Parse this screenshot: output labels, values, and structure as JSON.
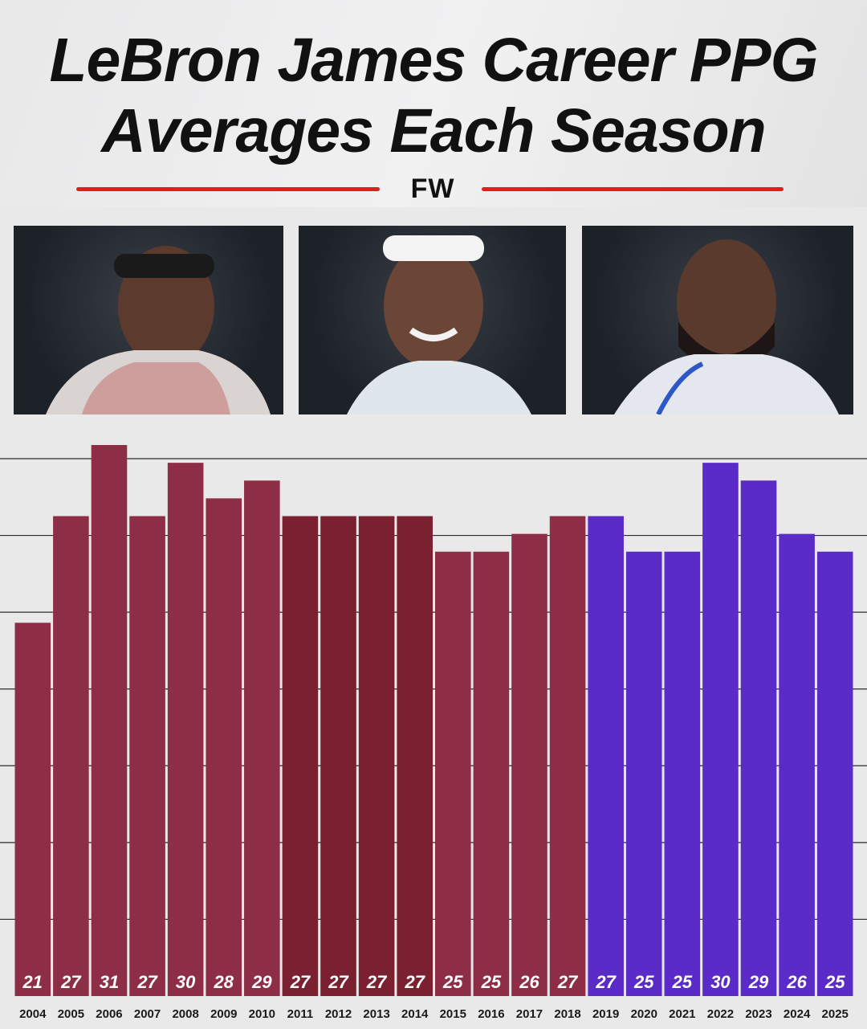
{
  "header": {
    "title_line1": "LeBron James Career PPG",
    "title_line2": "Averages Each Season",
    "brand": "FW",
    "accent_color": "#e21c21"
  },
  "photos": [
    {
      "name": "photo-early-career",
      "icon": "player-portrait-headband"
    },
    {
      "name": "photo-mid-career",
      "icon": "player-portrait-smiling"
    },
    {
      "name": "photo-late-career",
      "icon": "player-portrait-beard"
    }
  ],
  "chart_data": {
    "type": "bar",
    "categories": [
      "2004",
      "2005",
      "2006",
      "2007",
      "2008",
      "2009",
      "2010",
      "2011",
      "2012",
      "2013",
      "2014",
      "2015",
      "2016",
      "2017",
      "2018",
      "2019",
      "2020",
      "2021",
      "2022",
      "2023",
      "2024",
      "2025"
    ],
    "values": [
      21,
      27,
      31,
      27,
      30,
      28,
      29,
      27,
      27,
      27,
      27,
      25,
      25,
      26,
      27,
      27,
      25,
      25,
      30,
      29,
      26,
      25
    ],
    "colors": [
      "#8e2e46",
      "#8e2e46",
      "#8e2e46",
      "#8e2e46",
      "#8e2e46",
      "#8e2e46",
      "#8e2e46",
      "#7b2030",
      "#7b2030",
      "#7b2030",
      "#7b2030",
      "#8e2e46",
      "#8e2e46",
      "#8e2e46",
      "#8e2e46",
      "#5a2bc6",
      "#5a2bc6",
      "#5a2bc6",
      "#5a2bc6",
      "#5a2bc6",
      "#5a2bc6",
      "#5a2bc6"
    ],
    "title": "",
    "xlabel": "",
    "ylabel": "",
    "ylim": [
      0,
      31
    ],
    "grid": true,
    "legend": "none"
  }
}
